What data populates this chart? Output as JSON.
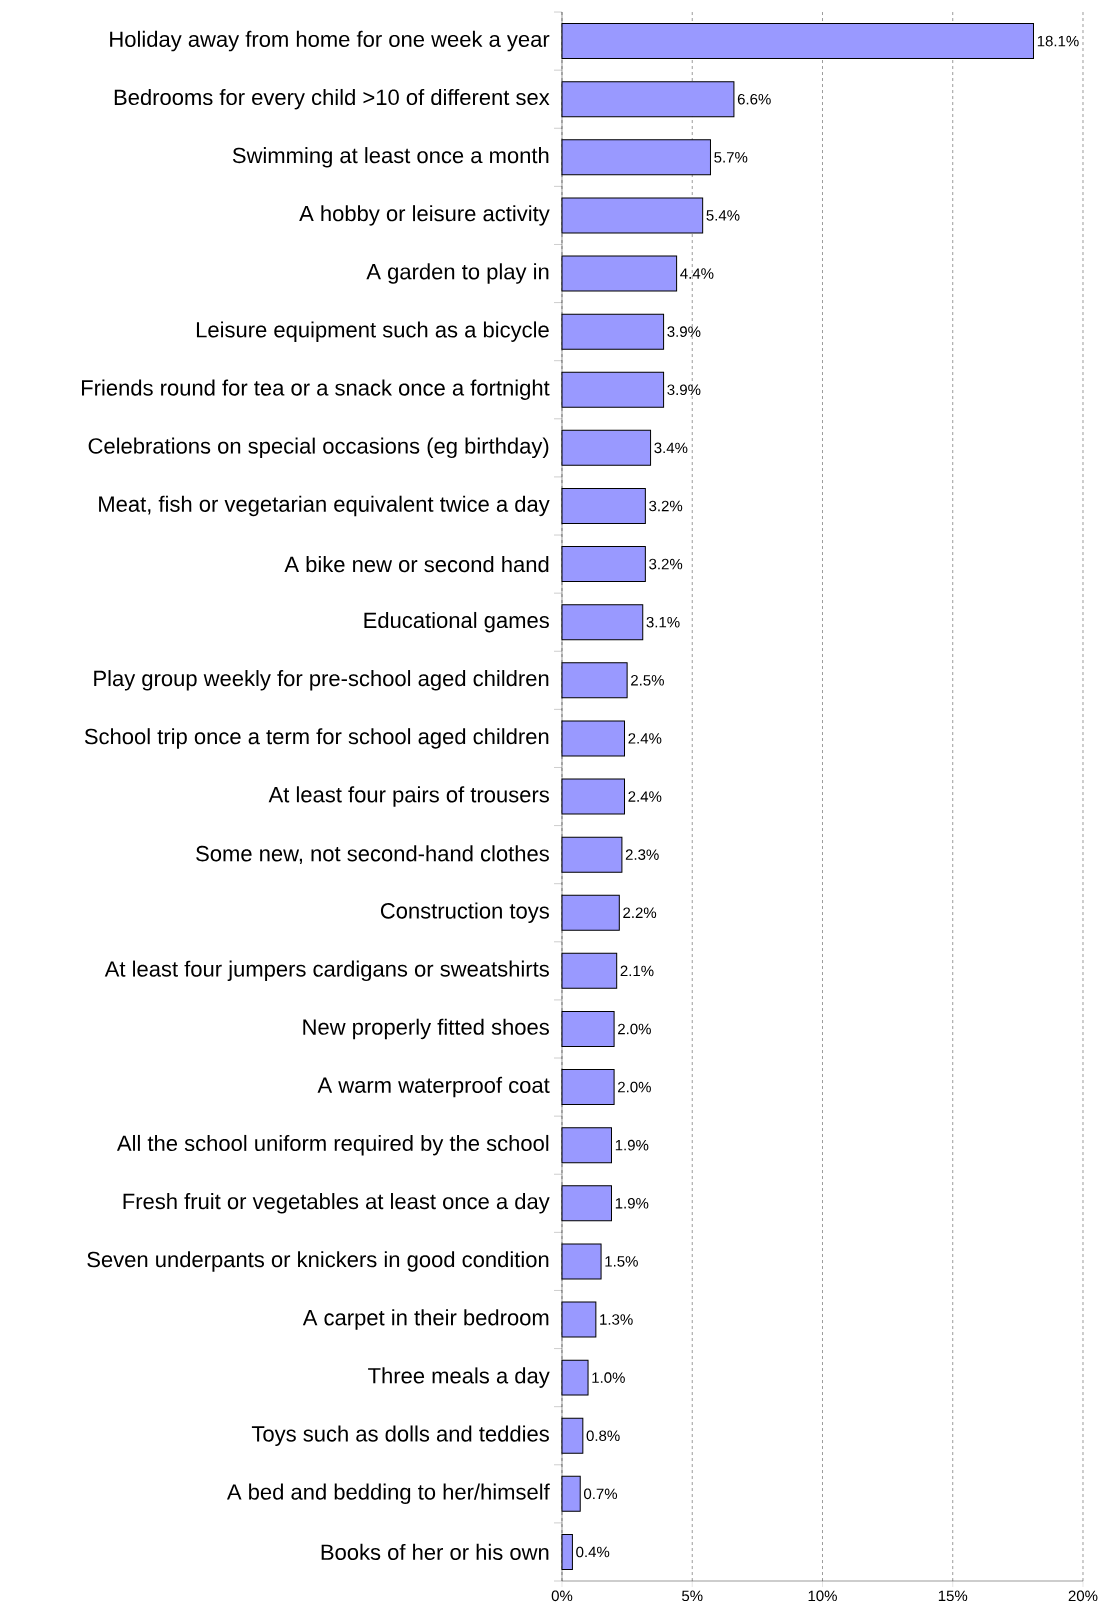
{
  "chart_data": {
    "type": "bar",
    "orientation": "horizontal",
    "categories": [
      "Holiday away from home for one week a year",
      "Bedrooms for every child >10 of different sex",
      "Swimming at least once a month",
      "A hobby or leisure activity",
      "A garden to play in",
      "Leisure equipment such as a bicycle",
      "Friends round for tea or a snack once a fortnight",
      "Celebrations on special occasions (eg birthday)",
      "Meat, fish or vegetarian equivalent twice a day",
      "A bike new or second hand",
      "Educational games",
      "Play group weekly for pre-school aged children",
      "School trip once a term for school aged children",
      "At least four pairs of trousers",
      "Some new, not second-hand clothes",
      "Construction toys",
      "At least four jumpers cardigans or sweatshirts",
      "New properly fitted shoes",
      "A warm waterproof coat",
      "All the school uniform required by the school",
      "Fresh fruit or vegetables at least once a day",
      "Seven underpants or knickers in good condition",
      "A carpet in their bedroom",
      "Three meals a day",
      "Toys such as dolls and teddies",
      "A bed and bedding to her/himself",
      "Books of her or his own"
    ],
    "values": [
      18.1,
      6.6,
      5.7,
      5.4,
      4.4,
      3.9,
      3.9,
      3.4,
      3.2,
      3.2,
      3.1,
      2.5,
      2.4,
      2.4,
      2.3,
      2.2,
      2.1,
      2.0,
      2.0,
      1.9,
      1.9,
      1.5,
      1.3,
      1.0,
      0.8,
      0.7,
      0.4
    ],
    "value_labels": [
      "18.1%",
      "6.6%",
      "5.7%",
      "5.4%",
      "4.4%",
      "3.9%",
      "3.9%",
      "3.4%",
      "3.2%",
      "3.2%",
      "3.1%",
      "2.5%",
      "2.4%",
      "2.4%",
      "2.3%",
      "2.2%",
      "2.1%",
      "2.0%",
      "2.0%",
      "1.9%",
      "1.9%",
      "1.5%",
      "1.3%",
      "1.0%",
      "0.8%",
      "0.7%",
      "0.4%"
    ],
    "color": "#9999ff",
    "xlim": [
      0,
      20
    ],
    "xticks": [
      {
        "value": 0,
        "label": "0%"
      },
      {
        "value": 5,
        "label": "5%"
      },
      {
        "value": 10,
        "label": "10%"
      },
      {
        "value": 15,
        "label": "15%"
      },
      {
        "value": 20,
        "label": "20%"
      }
    ],
    "grid": "x"
  }
}
